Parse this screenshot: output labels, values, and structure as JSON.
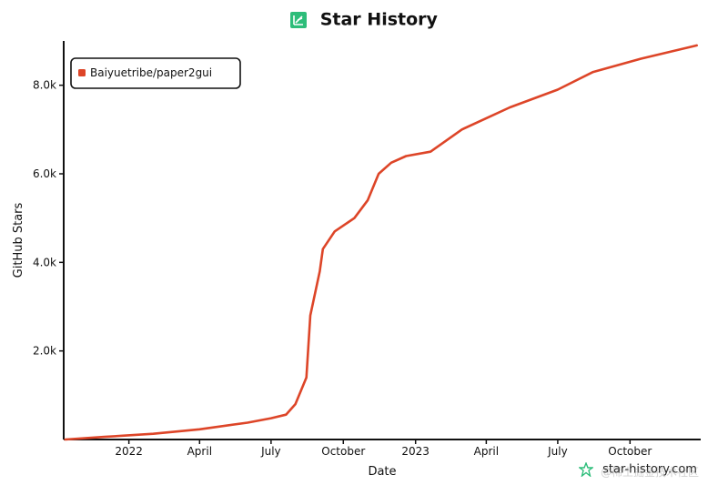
{
  "header": {
    "title": "Star History"
  },
  "footer": {
    "site": "star-history.com",
    "watermark": "@稀土掘金技术社区"
  },
  "colors": {
    "accent": "#dd4528",
    "logo": "#2dbd7a",
    "axis": "#111111"
  },
  "chart_data": {
    "type": "line",
    "title": "Star History",
    "xlabel": "Date",
    "ylabel": "GitHub Stars",
    "xlim": [
      "2021-10-10",
      "2023-12-30"
    ],
    "ylim": [
      0,
      9000
    ],
    "x_ticks": [
      {
        "date": "2022-01-01",
        "label": "2022"
      },
      {
        "date": "2022-04-01",
        "label": "April"
      },
      {
        "date": "2022-07-01",
        "label": "July"
      },
      {
        "date": "2022-10-01",
        "label": "October"
      },
      {
        "date": "2023-01-01",
        "label": "2023"
      },
      {
        "date": "2023-04-01",
        "label": "April"
      },
      {
        "date": "2023-07-01",
        "label": "July"
      },
      {
        "date": "2023-10-01",
        "label": "October"
      }
    ],
    "y_ticks": [
      {
        "value": 2000,
        "label": "2.0k"
      },
      {
        "value": 4000,
        "label": "4.0k"
      },
      {
        "value": 6000,
        "label": "6.0k"
      },
      {
        "value": 8000,
        "label": "8.0k"
      }
    ],
    "legend_position": "top-left",
    "series": [
      {
        "name": "Baiyuetribe/paper2gui",
        "color": "#dd4528",
        "points": [
          [
            "2021-10-12",
            0
          ],
          [
            "2021-12-01",
            60
          ],
          [
            "2022-02-01",
            130
          ],
          [
            "2022-04-01",
            230
          ],
          [
            "2022-06-01",
            380
          ],
          [
            "2022-07-01",
            480
          ],
          [
            "2022-07-20",
            560
          ],
          [
            "2022-08-01",
            800
          ],
          [
            "2022-08-15",
            1400
          ],
          [
            "2022-08-20",
            2800
          ],
          [
            "2022-09-01",
            3800
          ],
          [
            "2022-09-05",
            4300
          ],
          [
            "2022-09-20",
            4700
          ],
          [
            "2022-10-15",
            5000
          ],
          [
            "2022-11-01",
            5400
          ],
          [
            "2022-11-15",
            6000
          ],
          [
            "2022-12-01",
            6250
          ],
          [
            "2022-12-20",
            6400
          ],
          [
            "2023-01-20",
            6500
          ],
          [
            "2023-03-01",
            7000
          ],
          [
            "2023-05-01",
            7500
          ],
          [
            "2023-07-01",
            7900
          ],
          [
            "2023-08-15",
            8300
          ],
          [
            "2023-10-15",
            8600
          ],
          [
            "2023-12-25",
            8900
          ]
        ]
      }
    ]
  }
}
